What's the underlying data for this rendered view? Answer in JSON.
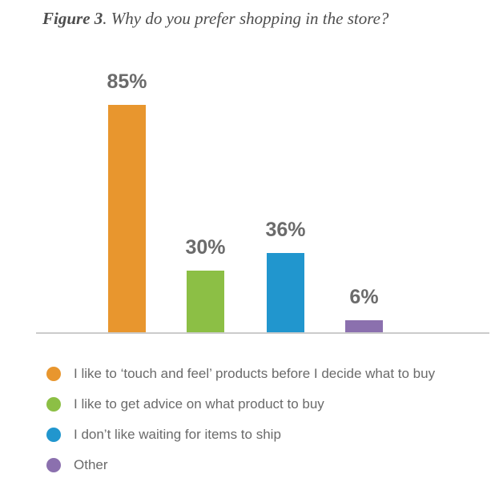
{
  "title": {
    "label": "Figure 3",
    "separator": ". ",
    "text": "Why do you prefer shopping in the store?"
  },
  "chart_data": {
    "type": "bar",
    "title": "Figure 3. Why do you prefer shopping in the store?",
    "categories": [
      "I like to ‘touch and feel’ products before I decide what to buy",
      "I like to get advice on what product to buy",
      "I don’t like waiting for items to ship",
      "Other"
    ],
    "values": [
      85,
      30,
      36,
      6
    ],
    "value_labels": [
      "85%",
      "30%",
      "36%",
      "6%"
    ],
    "colors": [
      "#e8962e",
      "#8cbf45",
      "#2196ce",
      "#8b70ae"
    ],
    "xlabel": "",
    "ylabel": "",
    "ylim": [
      0,
      100
    ],
    "grid": false,
    "legend_position": "bottom",
    "axis_line_color": "#cbcbcb",
    "value_label_color": "#6b6b6b",
    "bar_pixel_layout": {
      "lefts": [
        135,
        233,
        333,
        431
      ],
      "width": 47,
      "heights": [
        284,
        77,
        99,
        15
      ],
      "baseline_y": 415,
      "label_offset": 42
    }
  }
}
